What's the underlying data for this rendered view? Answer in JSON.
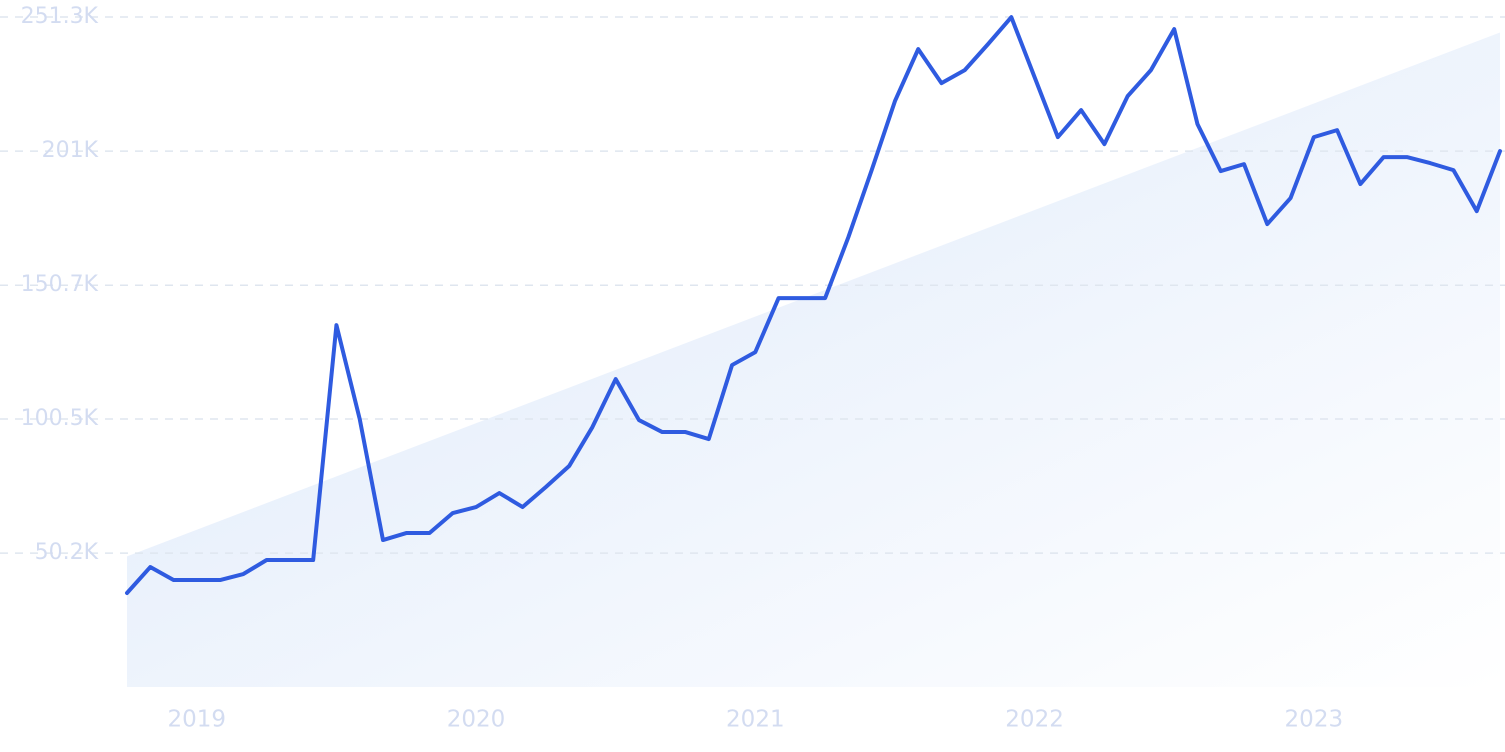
{
  "chart_data": {
    "type": "line",
    "categories": [
      null,
      null,
      null,
      "2019",
      null,
      null,
      null,
      null,
      null,
      null,
      null,
      null,
      null,
      null,
      null,
      "2020",
      null,
      null,
      null,
      null,
      null,
      null,
      null,
      null,
      null,
      null,
      null,
      "2021",
      null,
      null,
      null,
      null,
      null,
      null,
      null,
      null,
      null,
      null,
      null,
      "2022",
      null,
      null,
      null,
      null,
      null,
      null,
      null,
      null,
      null,
      null,
      null,
      "2023",
      null,
      null,
      null,
      null,
      null,
      null,
      null,
      null
    ],
    "series": [
      {
        "color": "#2f5be0",
        "values": [
          35250,
          45000,
          40125,
          40125,
          40125,
          42375,
          47625,
          47625,
          47625,
          135750,
          100500,
          55125,
          57750,
          57750,
          65250,
          67500,
          72750,
          67500,
          75000,
          82875,
          97500,
          115500,
          100125,
          95625,
          95625,
          93000,
          120750,
          125625,
          145875,
          145875,
          145875,
          168750,
          193875,
          219750,
          239250,
          226500,
          231375,
          241125,
          251250,
          228750,
          206250,
          216375,
          203625,
          221625,
          231375,
          246750,
          211125,
          193500,
          196125,
          173625,
          183375,
          206250,
          208875,
          188625,
          198750,
          198750,
          196500,
          193875,
          178500,
          201000
        ]
      }
    ],
    "trend": {
      "color": "#dce8fa",
      "values": [
        49000,
        245500
      ]
    },
    "ylim": [
      0,
      251300
    ],
    "yticks": [
      {
        "value": 50200,
        "label": "50.2K"
      },
      {
        "value": 100500,
        "label": "100.5K"
      },
      {
        "value": 150700,
        "label": "150.7K"
      },
      {
        "value": 201000,
        "label": "201K"
      },
      {
        "value": 251300,
        "label": "251.3K"
      }
    ],
    "grid": true
  }
}
